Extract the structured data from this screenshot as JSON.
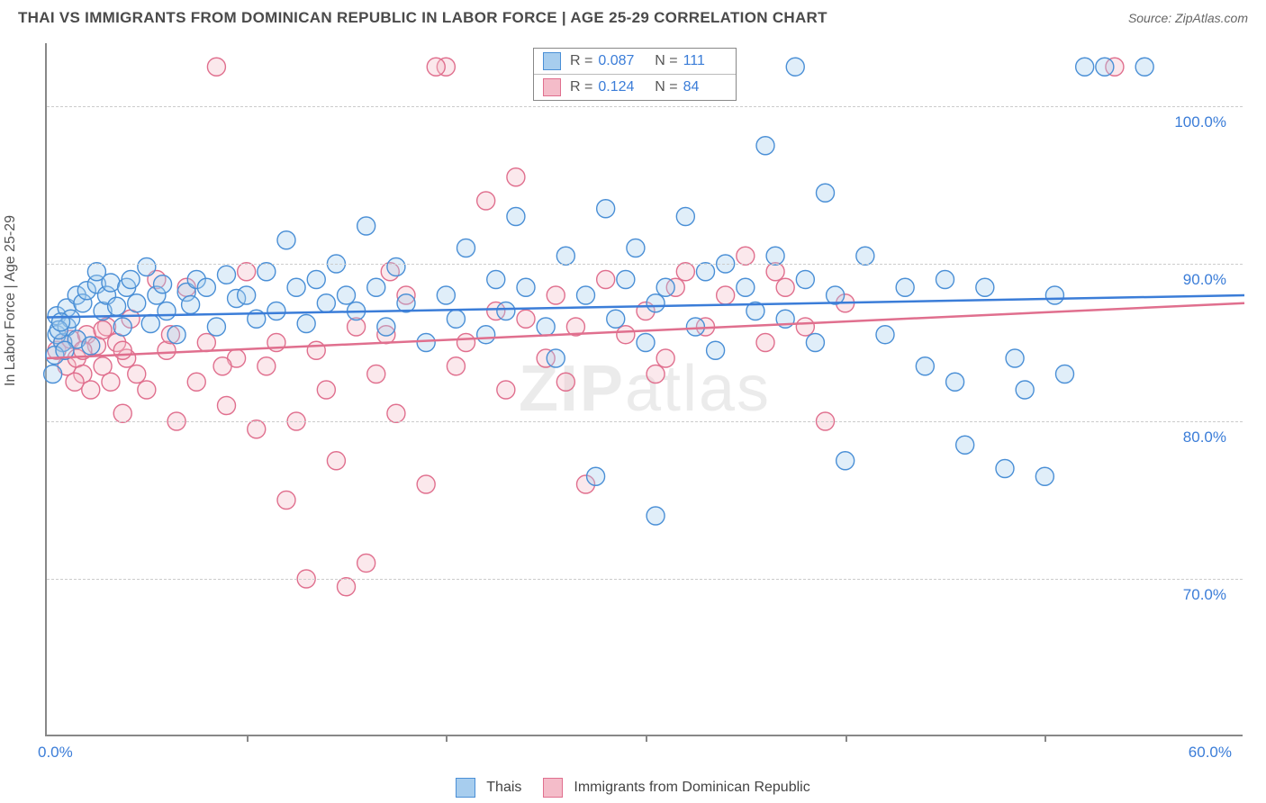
{
  "header": {
    "title": "THAI VS IMMIGRANTS FROM DOMINICAN REPUBLIC IN LABOR FORCE | AGE 25-29 CORRELATION CHART",
    "source": "Source: ZipAtlas.com"
  },
  "chart": {
    "type": "scatter",
    "y_axis_label": "In Labor Force | Age 25-29",
    "xlim": [
      0,
      60
    ],
    "ylim": [
      60,
      104
    ],
    "x_ticks": [
      0,
      10,
      20,
      30,
      40,
      50
    ],
    "x_tick_labels": {
      "left": "0.0%",
      "right": "60.0%"
    },
    "y_gridlines": [
      70,
      80,
      90,
      100
    ],
    "y_tick_labels": [
      "70.0%",
      "80.0%",
      "90.0%",
      "100.0%"
    ],
    "background_color": "#ffffff",
    "grid_color": "#cccccc",
    "axis_color": "#888888",
    "label_color_numeric": "#3b7dd8",
    "marker_radius": 10,
    "marker_stroke_width": 1.4,
    "marker_fill_opacity": 0.35,
    "watermark": "ZIPatlas",
    "series": [
      {
        "id": "thais",
        "label": "Thais",
        "color_stroke": "#4a8fd6",
        "color_fill": "#a7cdee",
        "R": "0.087",
        "N": "111",
        "trend": {
          "x1": 0,
          "y1": 86.6,
          "x2": 60,
          "y2": 88.0,
          "width": 2.5,
          "color": "#3b7dd8"
        },
        "points": [
          [
            0.5,
            85.5
          ],
          [
            0.5,
            86.7
          ],
          [
            0.8,
            85.0
          ],
          [
            1.0,
            86.0
          ],
          [
            1.0,
            87.2
          ],
          [
            1.2,
            86.5
          ],
          [
            1.5,
            88.0
          ],
          [
            1.5,
            85.2
          ],
          [
            1.8,
            87.5
          ],
          [
            2.0,
            88.3
          ],
          [
            2.2,
            84.8
          ],
          [
            2.5,
            88.7
          ],
          [
            2.5,
            89.5
          ],
          [
            2.8,
            87.0
          ],
          [
            3.0,
            88.0
          ],
          [
            3.2,
            88.8
          ],
          [
            3.5,
            87.3
          ],
          [
            3.8,
            86.0
          ],
          [
            4.0,
            88.5
          ],
          [
            4.2,
            89.0
          ],
          [
            4.5,
            87.5
          ],
          [
            5.0,
            89.8
          ],
          [
            5.2,
            86.2
          ],
          [
            5.5,
            88.0
          ],
          [
            5.8,
            88.7
          ],
          [
            6.0,
            87.0
          ],
          [
            6.5,
            85.5
          ],
          [
            7.0,
            88.2
          ],
          [
            7.2,
            87.4
          ],
          [
            7.5,
            89.0
          ],
          [
            8.0,
            88.5
          ],
          [
            8.5,
            86.0
          ],
          [
            9.0,
            89.3
          ],
          [
            9.5,
            87.8
          ],
          [
            10.0,
            88.0
          ],
          [
            10.5,
            86.5
          ],
          [
            11.0,
            89.5
          ],
          [
            11.5,
            87.0
          ],
          [
            12.0,
            91.5
          ],
          [
            12.5,
            88.5
          ],
          [
            13.0,
            86.2
          ],
          [
            13.5,
            89.0
          ],
          [
            14.0,
            87.5
          ],
          [
            14.5,
            90.0
          ],
          [
            15.0,
            88.0
          ],
          [
            15.5,
            87.0
          ],
          [
            16.0,
            92.4
          ],
          [
            16.5,
            88.5
          ],
          [
            17.0,
            86.0
          ],
          [
            17.5,
            89.8
          ],
          [
            18.0,
            87.5
          ],
          [
            19.0,
            85.0
          ],
          [
            20.0,
            88.0
          ],
          [
            20.5,
            86.5
          ],
          [
            21.0,
            91.0
          ],
          [
            22.0,
            85.5
          ],
          [
            22.5,
            89.0
          ],
          [
            23.0,
            87.0
          ],
          [
            23.5,
            93.0
          ],
          [
            24.0,
            88.5
          ],
          [
            25.0,
            86.0
          ],
          [
            25.5,
            84.0
          ],
          [
            26.0,
            90.5
          ],
          [
            27.0,
            88.0
          ],
          [
            27.5,
            76.5
          ],
          [
            28.0,
            93.5
          ],
          [
            28.5,
            86.5
          ],
          [
            29.0,
            89.0
          ],
          [
            29.5,
            91.0
          ],
          [
            30.0,
            85.0
          ],
          [
            30.5,
            87.5
          ],
          [
            30.5,
            74.0
          ],
          [
            31.0,
            88.5
          ],
          [
            32.0,
            93.0
          ],
          [
            32.5,
            86.0
          ],
          [
            33.0,
            89.5
          ],
          [
            33.5,
            84.5
          ],
          [
            34.0,
            90.0
          ],
          [
            35.0,
            88.5
          ],
          [
            35.5,
            87.0
          ],
          [
            36.0,
            97.5
          ],
          [
            36.5,
            90.5
          ],
          [
            37.0,
            86.5
          ],
          [
            37.5,
            102.5
          ],
          [
            38.0,
            89.0
          ],
          [
            38.5,
            85.0
          ],
          [
            39.0,
            94.5
          ],
          [
            39.5,
            88.0
          ],
          [
            40.0,
            77.5
          ],
          [
            41.0,
            90.5
          ],
          [
            42.0,
            85.5
          ],
          [
            43.0,
            88.5
          ],
          [
            44.0,
            83.5
          ],
          [
            45.0,
            89.0
          ],
          [
            45.5,
            82.5
          ],
          [
            46.0,
            78.5
          ],
          [
            47.0,
            88.5
          ],
          [
            48.0,
            77.0
          ],
          [
            48.5,
            84.0
          ],
          [
            49.0,
            82.0
          ],
          [
            50.0,
            76.5
          ],
          [
            51.0,
            83.0
          ],
          [
            52.0,
            102.5
          ],
          [
            53.0,
            102.5
          ],
          [
            55.0,
            102.5
          ],
          [
            50.5,
            88.0
          ],
          [
            0.3,
            83.0
          ],
          [
            0.4,
            84.2
          ],
          [
            0.6,
            85.8
          ],
          [
            0.7,
            86.3
          ],
          [
            0.9,
            84.5
          ]
        ]
      },
      {
        "id": "dominican",
        "label": "Immigrants from Dominican Republic",
        "color_stroke": "#e06f8e",
        "color_fill": "#f4bcc9",
        "R": "0.124",
        "N": "84",
        "trend": {
          "x1": 0,
          "y1": 84.0,
          "x2": 60,
          "y2": 87.5,
          "width": 2.5,
          "color": "#e06f8e"
        },
        "points": [
          [
            0.5,
            84.5
          ],
          [
            0.8,
            85.0
          ],
          [
            1.0,
            83.5
          ],
          [
            1.2,
            85.2
          ],
          [
            1.5,
            84.0
          ],
          [
            1.8,
            83.0
          ],
          [
            2.0,
            85.5
          ],
          [
            2.2,
            82.0
          ],
          [
            2.5,
            84.8
          ],
          [
            2.8,
            83.5
          ],
          [
            3.0,
            86.0
          ],
          [
            3.2,
            82.5
          ],
          [
            3.5,
            85.0
          ],
          [
            3.8,
            80.5
          ],
          [
            4.0,
            84.0
          ],
          [
            4.5,
            83.0
          ],
          [
            5.0,
            82.0
          ],
          [
            5.5,
            89.0
          ],
          [
            6.0,
            84.5
          ],
          [
            6.5,
            80.0
          ],
          [
            7.0,
            88.5
          ],
          [
            7.5,
            82.5
          ],
          [
            8.0,
            85.0
          ],
          [
            8.5,
            102.5
          ],
          [
            9.0,
            81.0
          ],
          [
            9.5,
            84.0
          ],
          [
            10.0,
            89.5
          ],
          [
            10.5,
            79.5
          ],
          [
            11.0,
            83.5
          ],
          [
            11.5,
            85.0
          ],
          [
            12.0,
            75.0
          ],
          [
            12.5,
            80.0
          ],
          [
            13.0,
            70.0
          ],
          [
            13.5,
            84.5
          ],
          [
            14.0,
            82.0
          ],
          [
            14.5,
            77.5
          ],
          [
            15.0,
            69.5
          ],
          [
            15.5,
            86.0
          ],
          [
            16.0,
            71.0
          ],
          [
            16.5,
            83.0
          ],
          [
            17.0,
            85.5
          ],
          [
            17.5,
            80.5
          ],
          [
            18.0,
            88.0
          ],
          [
            19.0,
            76.0
          ],
          [
            20.0,
            102.5
          ],
          [
            20.5,
            83.5
          ],
          [
            21.0,
            85.0
          ],
          [
            22.0,
            94.0
          ],
          [
            22.5,
            87.0
          ],
          [
            23.0,
            82.0
          ],
          [
            23.5,
            95.5
          ],
          [
            24.0,
            86.5
          ],
          [
            25.0,
            84.0
          ],
          [
            25.5,
            88.0
          ],
          [
            26.0,
            82.5
          ],
          [
            26.5,
            86.0
          ],
          [
            27.0,
            76.0
          ],
          [
            28.0,
            89.0
          ],
          [
            28.5,
            102.5
          ],
          [
            29.0,
            85.5
          ],
          [
            30.0,
            87.0
          ],
          [
            31.0,
            84.0
          ],
          [
            32.0,
            89.5
          ],
          [
            33.0,
            86.0
          ],
          [
            34.0,
            88.0
          ],
          [
            35.0,
            90.5
          ],
          [
            36.0,
            85.0
          ],
          [
            37.0,
            88.5
          ],
          [
            38.0,
            86.0
          ],
          [
            39.0,
            80.0
          ],
          [
            40.0,
            87.5
          ],
          [
            36.5,
            89.5
          ],
          [
            30.5,
            83.0
          ],
          [
            31.5,
            88.5
          ],
          [
            17.2,
            89.5
          ],
          [
            8.8,
            83.5
          ],
          [
            6.2,
            85.5
          ],
          [
            4.2,
            86.5
          ],
          [
            3.8,
            84.5
          ],
          [
            2.8,
            85.8
          ],
          [
            1.8,
            84.5
          ],
          [
            1.4,
            82.5
          ],
          [
            53.5,
            102.5
          ],
          [
            19.5,
            102.5
          ]
        ]
      }
    ]
  },
  "legend": {
    "items": [
      {
        "swatch_fill": "#a7cdee",
        "swatch_border": "#4a8fd6",
        "label": "Thais"
      },
      {
        "swatch_fill": "#f4bcc9",
        "swatch_border": "#e06f8e",
        "label": "Immigrants from Dominican Republic"
      }
    ]
  }
}
